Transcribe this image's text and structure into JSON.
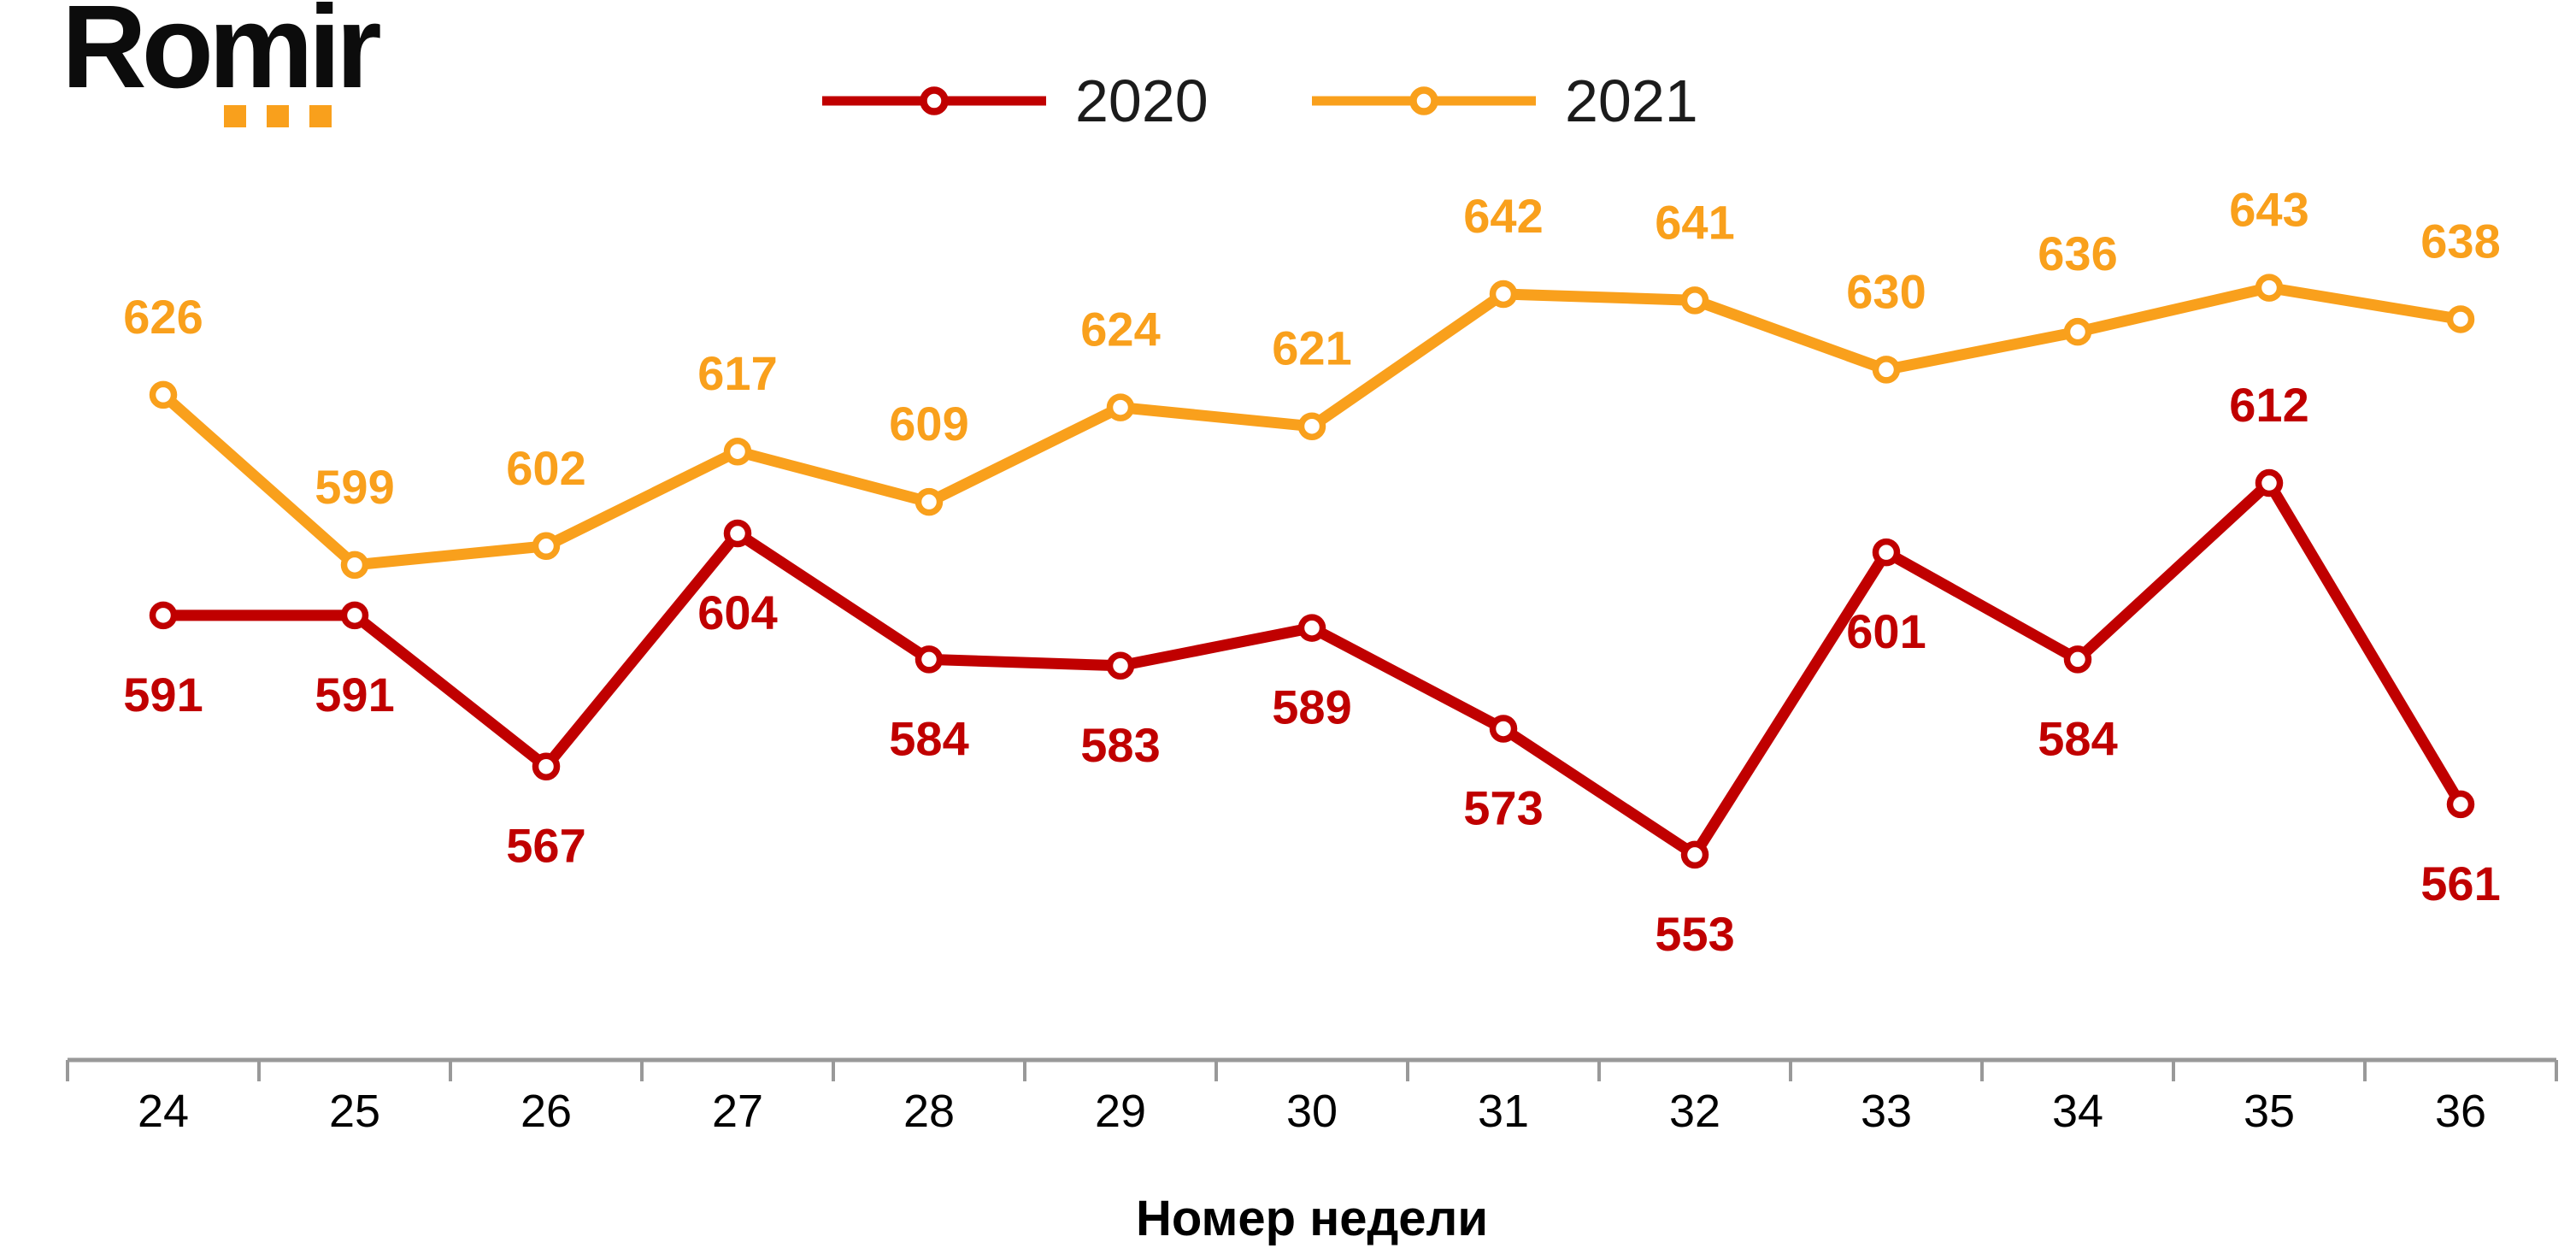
{
  "logo": {
    "text": "Romir",
    "dot_color": "#F9A01C"
  },
  "chart_data": {
    "type": "line",
    "categories": [
      24,
      25,
      26,
      27,
      28,
      29,
      30,
      31,
      32,
      33,
      34,
      35,
      36
    ],
    "xlabel": "Номер недели",
    "series": [
      {
        "name": "2020",
        "color": "#C00000",
        "values": [
          591,
          591,
          567,
          604,
          584,
          583,
          589,
          573,
          553,
          601,
          584,
          612,
          561
        ],
        "label_side": "below",
        "label_side_overrides": {
          "11": "above"
        }
      },
      {
        "name": "2021",
        "color": "#F9A01C",
        "values": [
          626,
          599,
          602,
          617,
          609,
          624,
          621,
          642,
          641,
          630,
          636,
          643,
          638
        ],
        "label_side": "above",
        "label_side_overrides": {}
      }
    ],
    "ylim": [
      545,
      660
    ],
    "grid": false,
    "legend_position": "top-center",
    "marker": "open-circle",
    "axis_color": "#999999",
    "tick_label_color": "#000000"
  }
}
